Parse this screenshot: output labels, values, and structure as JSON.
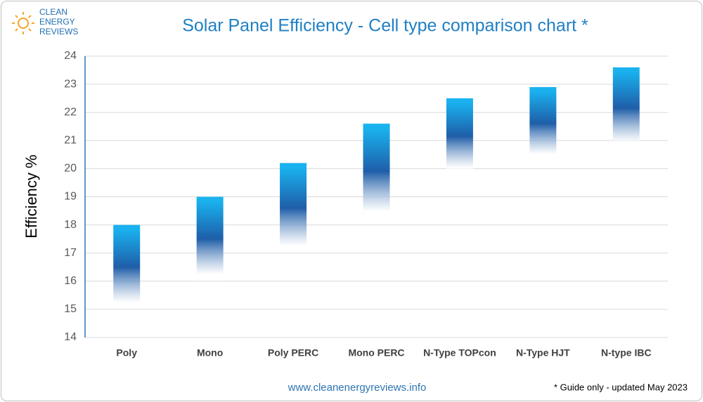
{
  "chart_data": {
    "type": "range-bar",
    "title": "Solar Panel Efficiency - Cell type comparison chart *",
    "y_label": "Efficiency %",
    "categories": [
      "Poly",
      "Mono",
      "Poly PERC",
      "Mono PERC",
      "N-Type TOPcon",
      "N-Type HJT",
      "N-type IBC"
    ],
    "low": [
      15.0,
      16.0,
      17.0,
      18.2,
      19.8,
      20.3,
      20.7
    ],
    "high": [
      18.0,
      19.0,
      20.2,
      21.6,
      22.5,
      22.9,
      23.6
    ],
    "colors": [
      "#19b2ef",
      "#1f5ea8",
      "#ffffff"
    ],
    "ylim": [
      14,
      24
    ],
    "yticks": [
      14,
      15,
      16,
      17,
      18,
      19,
      20,
      21,
      22,
      23,
      24
    ],
    "grid": true
  },
  "logo": [
    "CLEAN",
    "ENERGY",
    "REVIEWS"
  ],
  "footer": {
    "url": "www.cleanenergyreviews.info",
    "note": "* Guide only - updated May 2023"
  }
}
